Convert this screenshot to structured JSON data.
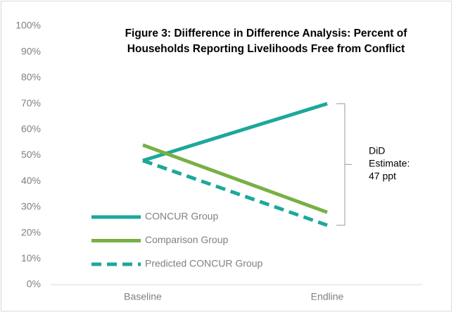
{
  "chart_data": {
    "type": "line",
    "title": [
      "Figure 3: Diifference in Difference Analysis: Percent of",
      "Households Reporting Livelihoods Free from Conflict"
    ],
    "categories": [
      "Baseline",
      "Endline"
    ],
    "series": [
      {
        "name": "CONCUR Group",
        "color": "#1ca89b",
        "dash": false,
        "values": [
          48,
          70
        ]
      },
      {
        "name": "Comparison Group",
        "color": "#78b044",
        "dash": false,
        "values": [
          54,
          28
        ]
      },
      {
        "name": "Predicted CONCUR Group",
        "color": "#1ca89b",
        "dash": true,
        "values": [
          48,
          23
        ]
      }
    ],
    "annotation": [
      "DiD",
      "Estimate:",
      "47 ppt"
    ],
    "ylim": [
      0,
      100
    ],
    "yticks": [
      {
        "value": 0,
        "label": "0%"
      },
      {
        "value": 10,
        "label": "10%"
      },
      {
        "value": 20,
        "label": "20%"
      },
      {
        "value": 30,
        "label": "30%"
      },
      {
        "value": 40,
        "label": "40%"
      },
      {
        "value": 50,
        "label": "50%"
      },
      {
        "value": 60,
        "label": "60%"
      },
      {
        "value": 70,
        "label": "70%"
      },
      {
        "value": 80,
        "label": "80%"
      },
      {
        "value": 90,
        "label": "90%"
      },
      {
        "value": 100,
        "label": "100%"
      }
    ],
    "grid": false
  }
}
